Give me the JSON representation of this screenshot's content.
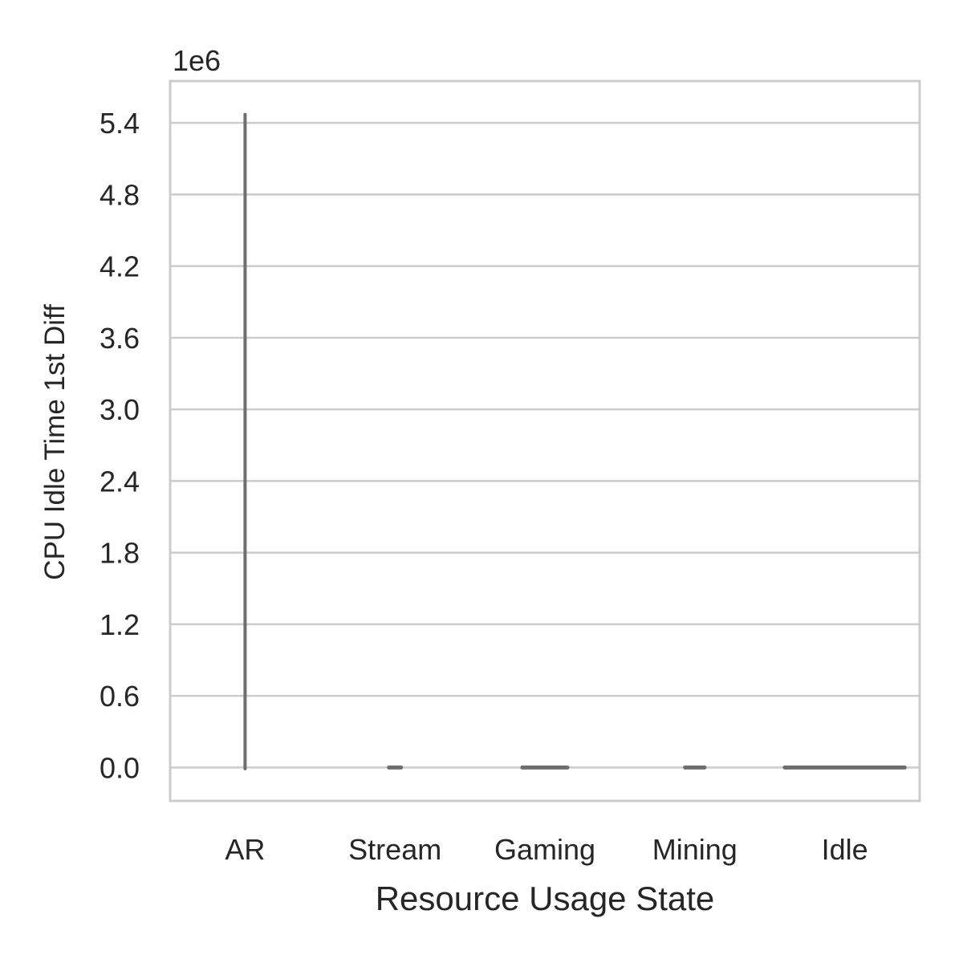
{
  "chart_data": {
    "type": "violin",
    "title": "",
    "xlabel": "Resource Usage State",
    "ylabel": "CPU Idle Time 1st Diff",
    "y_offset_text": "1e6",
    "y_scale_multiplier": 1000000,
    "categories": [
      "AR",
      "Stream",
      "Gaming",
      "Mining",
      "Idle"
    ],
    "series": [
      {
        "category": "AR",
        "min": -0.01,
        "max": 5.47,
        "spread_width": 0.0
      },
      {
        "category": "Stream",
        "min": 0.0,
        "max": 0.0,
        "spread_width": 0.08
      },
      {
        "category": "Gaming",
        "min": 0.0,
        "max": 0.0,
        "spread_width": 0.3
      },
      {
        "category": "Mining",
        "min": 0.0,
        "max": 0.0,
        "spread_width": 0.13
      },
      {
        "category": "Idle",
        "min": 0.0,
        "max": 0.0,
        "spread_width": 0.8
      }
    ],
    "yticks": [
      "0.0",
      "0.6",
      "1.2",
      "1.8",
      "2.4",
      "3.0",
      "3.6",
      "4.2",
      "4.8",
      "5.4"
    ],
    "ytick_values": [
      0.0,
      0.6,
      1.2,
      1.8,
      2.4,
      3.0,
      3.6,
      4.2,
      4.8,
      5.4
    ],
    "ylim": [
      -0.28,
      5.75
    ],
    "grid": true,
    "colors": {
      "violin": "#6e6e6e",
      "grid": "#cccccc",
      "frame": "#cccccc",
      "text": "#262626"
    }
  }
}
